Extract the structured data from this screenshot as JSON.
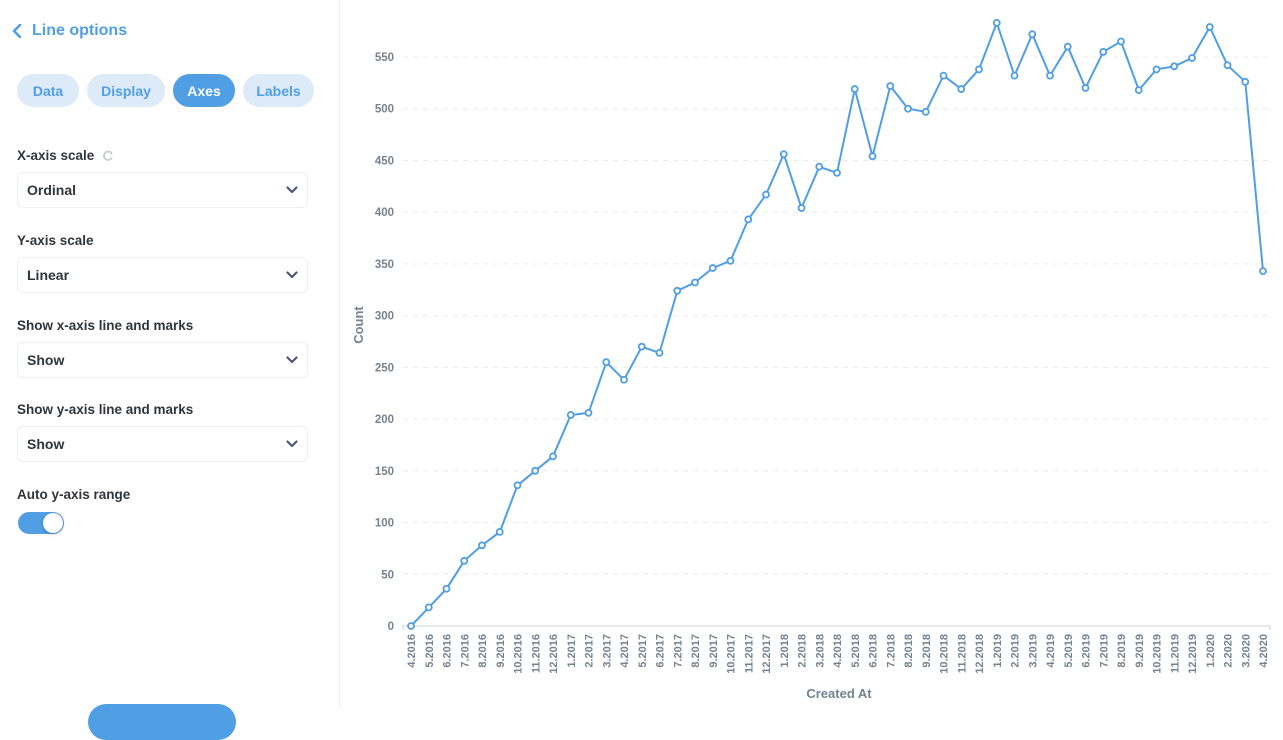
{
  "sidebar": {
    "back_label": "Line options",
    "tabs": [
      {
        "label": "Data",
        "active": false
      },
      {
        "label": "Display",
        "active": false
      },
      {
        "label": "Axes",
        "active": true
      },
      {
        "label": "Labels",
        "active": false
      }
    ],
    "fields": {
      "x_scale": {
        "label": "X-axis scale",
        "value": "Ordinal"
      },
      "y_scale": {
        "label": "Y-axis scale",
        "value": "Linear"
      },
      "show_x": {
        "label": "Show x-axis line and marks",
        "value": "Show"
      },
      "show_y": {
        "label": "Show y-axis line and marks",
        "value": "Show"
      },
      "auto_y": {
        "label": "Auto y-axis range",
        "enabled": true
      }
    }
  },
  "colors": {
    "accent": "#509ee3",
    "tab_inactive_bg": "#ddeaf8",
    "axis_text": "#74838f",
    "label_text": "#2e353b",
    "grid": "#ececec"
  },
  "chart_data": {
    "type": "line",
    "title": "",
    "xlabel": "Created At",
    "ylabel": "Count",
    "ylim": [
      0,
      600
    ],
    "yticks": [
      0,
      50,
      100,
      150,
      200,
      250,
      300,
      350,
      400,
      450,
      500,
      550
    ],
    "grid": true,
    "legend": null,
    "categories": [
      "4.2016",
      "5.2016",
      "6.2016",
      "7.2016",
      "8.2016",
      "9.2016",
      "10.2016",
      "11.2016",
      "12.2016",
      "1.2017",
      "2.2017",
      "3.2017",
      "4.2017",
      "5.2017",
      "6.2017",
      "7.2017",
      "8.2017",
      "9.2017",
      "10.2017",
      "11.2017",
      "12.2017",
      "1.2018",
      "2.2018",
      "3.2018",
      "4.2018",
      "5.2018",
      "6.2018",
      "7.2018",
      "8.2018",
      "9.2018",
      "10.2018",
      "11.2018",
      "12.2018",
      "1.2019",
      "2.2019",
      "3.2019",
      "4.2019",
      "5.2019",
      "6.2019",
      "7.2019",
      "8.2019",
      "9.2019",
      "10.2019",
      "11.2019",
      "12.2019",
      "1.2020",
      "2.2020",
      "3.2020",
      "4.2020"
    ],
    "series": [
      {
        "name": "Count",
        "values": [
          0,
          18,
          36,
          63,
          78,
          91,
          136,
          150,
          164,
          204,
          206,
          255,
          238,
          270,
          264,
          324,
          332,
          346,
          353,
          393,
          417,
          456,
          404,
          444,
          438,
          519,
          454,
          522,
          500,
          497,
          532,
          519,
          538,
          583,
          532,
          572,
          532,
          560,
          520,
          555,
          565,
          518,
          538,
          541,
          549,
          579,
          542,
          526,
          343
        ]
      }
    ]
  }
}
